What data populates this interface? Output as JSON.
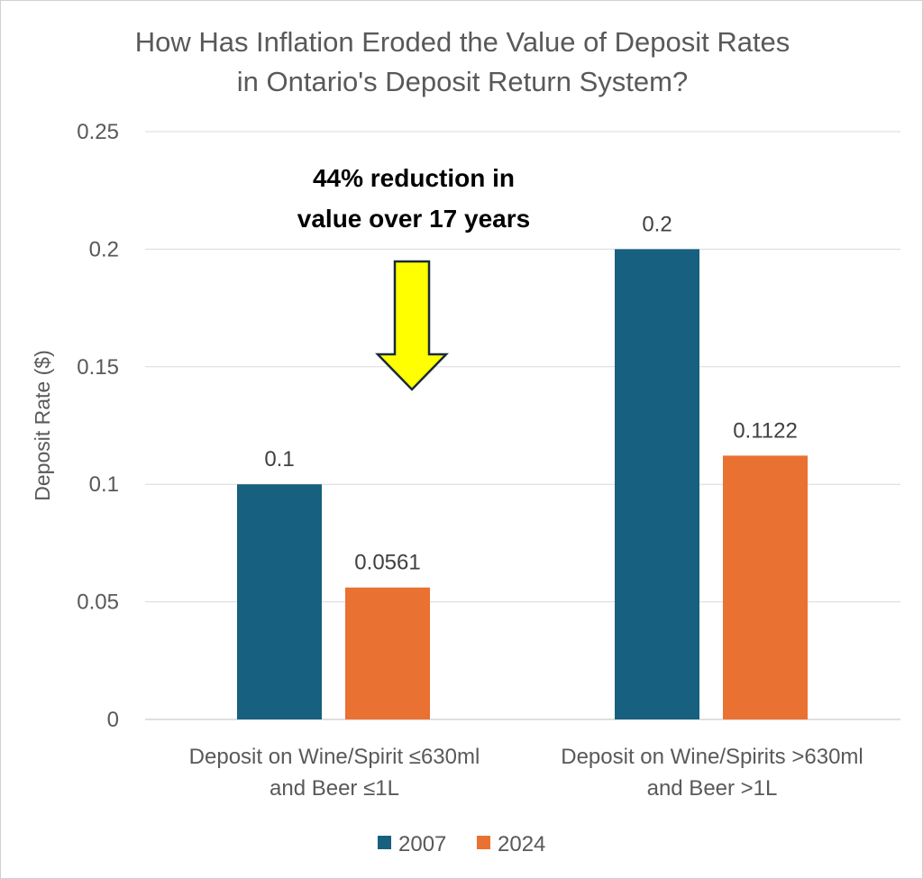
{
  "chart_data": {
    "type": "bar",
    "title_lines": [
      "How Has Inflation Eroded the Value of Deposit Rates",
      "in Ontario's Deposit Return System?"
    ],
    "ylabel": "Deposit Rate ($)",
    "xlabel": "",
    "ylim": [
      0,
      0.25
    ],
    "y_ticks": [
      "0",
      "0.05",
      "0.1",
      "0.15",
      "0.2",
      "0.25"
    ],
    "y_tick_values": [
      0,
      0.05,
      0.1,
      0.15,
      0.2,
      0.25
    ],
    "grid": true,
    "legend_position": "bottom",
    "categories": [
      [
        "Deposit on Wine/Spirit  ≤630ml",
        "and Beer ≤1L"
      ],
      [
        "Deposit on Wine/Spirits >630ml",
        "and Beer >1L"
      ]
    ],
    "series": [
      {
        "name": "2007",
        "color": "#17607f",
        "values": [
          0.1,
          0.2
        ],
        "labels": [
          "0.1",
          "0.2"
        ]
      },
      {
        "name": "2024",
        "color": "#e97132",
        "values": [
          0.0561,
          0.1122
        ],
        "labels": [
          "0.0561",
          "0.1122"
        ]
      }
    ],
    "annotation": {
      "lines": [
        "44% reduction in",
        "value over 17 years"
      ],
      "arrow_color": "#ffff00",
      "arrow_stroke": "#1a2a3a",
      "arrow_icon": "down-arrow-icon"
    }
  }
}
